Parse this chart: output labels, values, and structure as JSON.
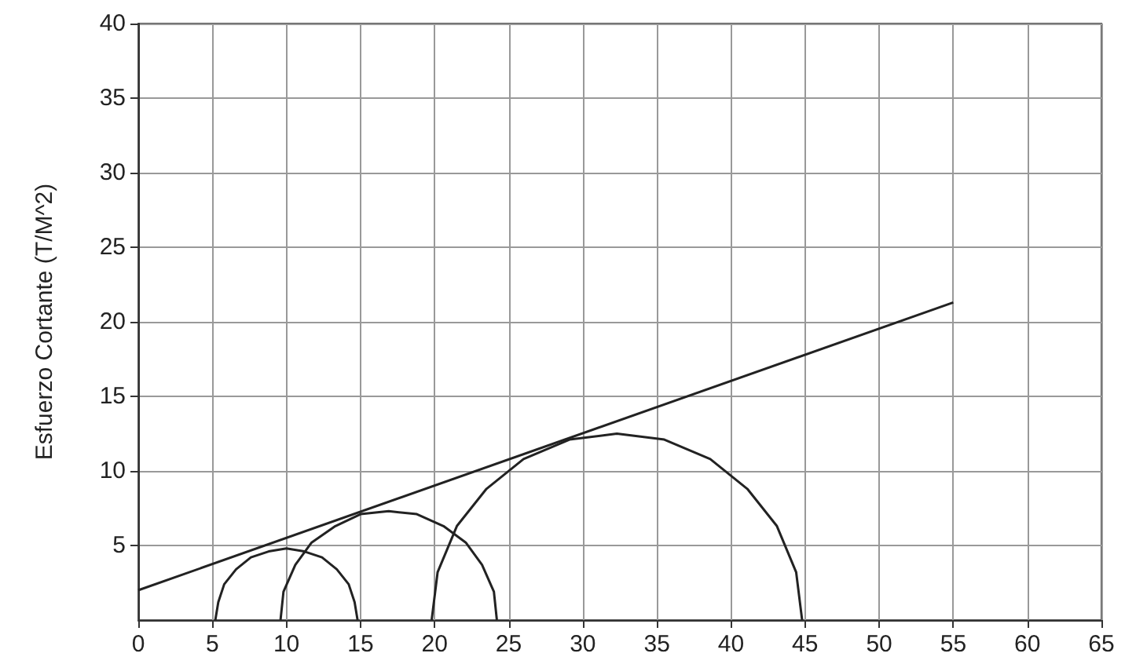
{
  "chart_data": {
    "type": "line",
    "ylabel": "Esfuerzo Cortante (T/M^2)",
    "xlim": [
      0,
      65
    ],
    "xticks": [
      0,
      5,
      10,
      15,
      20,
      25,
      30,
      35,
      40,
      45,
      50,
      55,
      60,
      65
    ],
    "ylim": [
      0,
      40
    ],
    "yticks": [
      5,
      10,
      15,
      20,
      25,
      30,
      35,
      40
    ],
    "grid": true,
    "marker": "none",
    "line_style": "solid",
    "series": [
      {
        "color": "#222222",
        "x": [
          0,
          55
        ],
        "values": [
          2,
          21.3
        ]
      },
      {
        "color": "#222222",
        "x": [
          14.8,
          14.6,
          14.2,
          13.4,
          12.4,
          11.2,
          10,
          8.8,
          7.6,
          6.6,
          5.8,
          5.4,
          5.2
        ],
        "values": [
          0,
          1.2,
          2.4,
          3.4,
          4.2,
          4.6,
          4.8,
          4.6,
          4.2,
          3.4,
          2.4,
          1.2,
          0
        ]
      },
      {
        "color": "#222222",
        "x": [
          24.2,
          24.0,
          23.2,
          22.1,
          20.6,
          18.8,
          16.9,
          15.0,
          13.3,
          11.7,
          10.6,
          9.8,
          9.6
        ],
        "values": [
          0,
          1.9,
          3.7,
          5.2,
          6.3,
          7.1,
          7.3,
          7.1,
          6.3,
          5.2,
          3.7,
          1.9,
          0
        ]
      },
      {
        "color": "#222222",
        "x": [
          44.8,
          44.4,
          43.1,
          41.1,
          38.6,
          35.5,
          32.3,
          29.1,
          26.0,
          23.5,
          21.5,
          20.2,
          19.8
        ],
        "values": [
          0,
          3.2,
          6.3,
          8.8,
          10.8,
          12.1,
          12.5,
          12.1,
          10.8,
          8.8,
          6.3,
          3.2,
          0
        ]
      }
    ]
  }
}
